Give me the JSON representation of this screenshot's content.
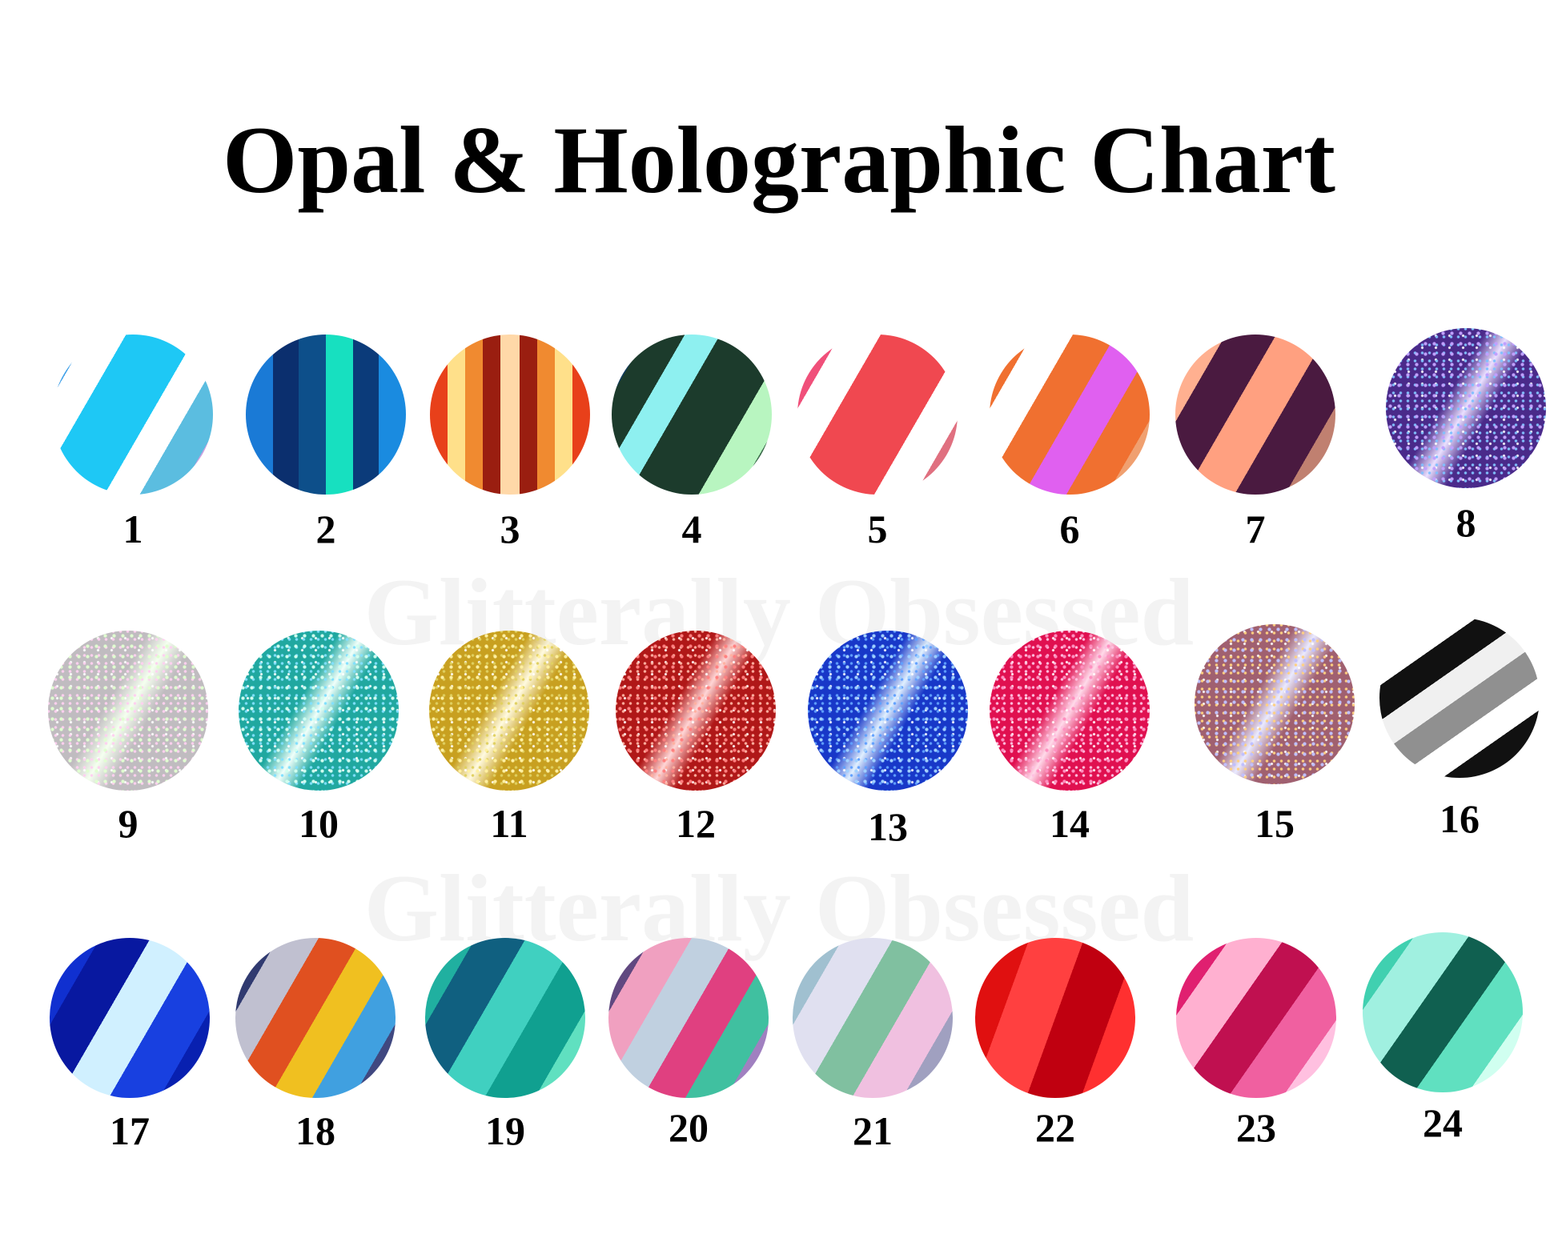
{
  "title": "Opal & Holographic Chart",
  "watermark": "Glitterally Obsessed",
  "swatches": [
    {
      "number": "1",
      "style": "stripe",
      "angle": 120,
      "colors": [
        "#3fa0e8",
        "#ffffff",
        "#1ec8f5",
        "#1ec8f5",
        "#ffffff",
        "#5bbde0",
        "#c9a0e0"
      ]
    },
    {
      "number": "2",
      "style": "stripe",
      "angle": 90,
      "colors": [
        "#1a7ad6",
        "#0b2f6e",
        "#0d4f8a",
        "#17e0c0",
        "#0b3b7a",
        "#1a8be0"
      ]
    },
    {
      "number": "3",
      "style": "stripe",
      "angle": 90,
      "colors": [
        "#e8401a",
        "#ffe08a",
        "#f08a30",
        "#9a1e10",
        "#ffd8a8",
        "#9a1e10",
        "#f08a30",
        "#ffe08a",
        "#e8401a"
      ]
    },
    {
      "number": "4",
      "style": "stripe",
      "angle": 120,
      "colors": [
        "#0f3a5a",
        "#1c3b2c",
        "#8ef0f0",
        "#1c3b2c",
        "#1c3b2c",
        "#b8f5c0",
        "#3a6a4a"
      ]
    },
    {
      "number": "5",
      "style": "stripe",
      "angle": 120,
      "colors": [
        "#f0507a",
        "#ffffff",
        "#f04850",
        "#f04850",
        "#ffffff",
        "#e07080"
      ]
    },
    {
      "number": "6",
      "style": "stripe",
      "angle": 120,
      "colors": [
        "#f07030",
        "#ffffff",
        "#f07030",
        "#e060f0",
        "#f07030",
        "#f0a070"
      ]
    },
    {
      "number": "7",
      "style": "stripe",
      "angle": 120,
      "colors": [
        "#ffb090",
        "#4a1a40",
        "#ffa080",
        "#4a1a40",
        "#c08070"
      ]
    },
    {
      "number": "8",
      "style": "glitter",
      "colors": [
        "#4a2a8a",
        "#c0a0ff",
        "#80c0ff"
      ]
    },
    {
      "number": "9",
      "style": "glitter",
      "colors": [
        "#c0bcc0",
        "#e0ffd0",
        "#ffd0f0"
      ]
    },
    {
      "number": "10",
      "style": "glitter",
      "colors": [
        "#20a8a0",
        "#d0fff0",
        "#80e0ff"
      ]
    },
    {
      "number": "11",
      "style": "glitter",
      "colors": [
        "#c8a020",
        "#fff0a0",
        "#e0d060"
      ]
    },
    {
      "number": "12",
      "style": "glitter",
      "colors": [
        "#b01818",
        "#ff8080",
        "#ffb0a0"
      ]
    },
    {
      "number": "13",
      "style": "glitter",
      "colors": [
        "#1838c8",
        "#a0d0ff",
        "#60a0ff"
      ]
    },
    {
      "number": "14",
      "style": "glitter",
      "colors": [
        "#e01050",
        "#ff90c0",
        "#ffc0e0"
      ]
    },
    {
      "number": "15",
      "style": "glitter",
      "colors": [
        "#a06070",
        "#c0c0ff",
        "#ffd080"
      ]
    },
    {
      "number": "16",
      "style": "stripe",
      "angle": 145,
      "colors": [
        "#e0e0e0",
        "#ffffff",
        "#111111",
        "#f0f0f0",
        "#909090",
        "#ffffff",
        "#111111",
        "#d0d0d0"
      ]
    },
    {
      "number": "17",
      "style": "stripe",
      "angle": 120,
      "colors": [
        "#1030d0",
        "#0818a0",
        "#d0f0ff",
        "#1840e0",
        "#0820b0"
      ]
    },
    {
      "number": "18",
      "style": "stripe",
      "angle": 120,
      "colors": [
        "#303a70",
        "#c0c0d0",
        "#e05020",
        "#f0c020",
        "#40a0e0",
        "#404880"
      ]
    },
    {
      "number": "19",
      "style": "stripe",
      "angle": 120,
      "colors": [
        "#20b0a0",
        "#106080",
        "#40d0c0",
        "#10a090",
        "#60e0c0"
      ]
    },
    {
      "number": "20",
      "style": "stripe",
      "angle": 120,
      "colors": [
        "#604880",
        "#f0a0c0",
        "#c0d0e0",
        "#e04080",
        "#40c0a0",
        "#a080c0"
      ]
    },
    {
      "number": "21",
      "style": "stripe",
      "angle": 120,
      "colors": [
        "#a0c0d0",
        "#e0e0f0",
        "#80c0a0",
        "#f0c0e0",
        "#a0a0c0"
      ]
    },
    {
      "number": "22",
      "style": "stripe",
      "angle": 110,
      "colors": [
        "#e01010",
        "#ff4040",
        "#c00010",
        "#ff3030"
      ]
    },
    {
      "number": "23",
      "style": "stripe",
      "angle": 125,
      "colors": [
        "#e02070",
        "#ffb0d0",
        "#c01050",
        "#f060a0",
        "#ffc0e0"
      ]
    },
    {
      "number": "24",
      "style": "stripe",
      "angle": 125,
      "colors": [
        "#40d0b0",
        "#a0f0e0",
        "#106050",
        "#60e0c0",
        "#d0fff0"
      ]
    }
  ]
}
